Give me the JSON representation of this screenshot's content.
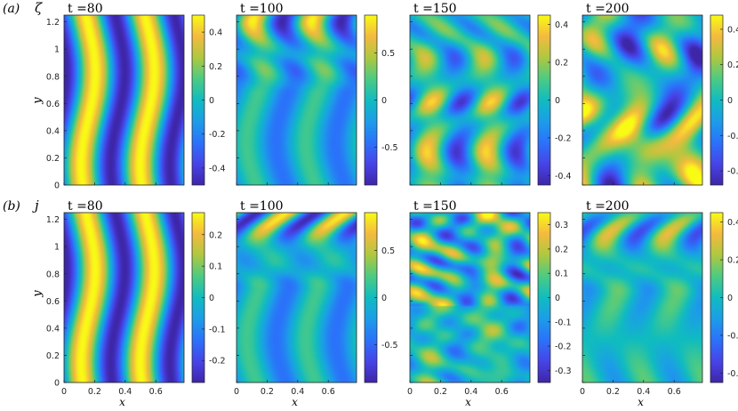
{
  "rows": [
    {
      "row_label": "(a)",
      "field_symbol": "ζ",
      "panels": [
        {
          "time_label": "t =80",
          "pattern": "stripes",
          "colorbar_ticks": [
            "0.4",
            "0.2",
            "0",
            "-0.2",
            "-0.4"
          ],
          "clim": [
            -0.5,
            0.5
          ]
        },
        {
          "time_label": "t =100",
          "pattern": "kh",
          "colorbar_ticks": [
            "0.5",
            "0",
            "-0.5"
          ],
          "clim": [
            -0.9,
            0.9
          ]
        },
        {
          "time_label": "t =150",
          "pattern": "blobs",
          "colorbar_ticks": [
            "0.4",
            "0.2",
            "0",
            "-0.2",
            "-0.4"
          ],
          "clim": [
            -0.45,
            0.45
          ]
        },
        {
          "time_label": "t =200",
          "pattern": "turb",
          "colorbar_ticks": [
            "0.4",
            "0.2",
            "0",
            "-0.2",
            "-0.4"
          ],
          "clim": [
            -0.48,
            0.48
          ]
        }
      ]
    },
    {
      "row_label": "(b)",
      "field_symbol": "j",
      "panels": [
        {
          "time_label": "t =80",
          "pattern": "stripes",
          "colorbar_ticks": [
            "0.2",
            "0.1",
            "0",
            "-0.1",
            "-0.2"
          ],
          "clim": [
            -0.27,
            0.27
          ]
        },
        {
          "time_label": "t =100",
          "pattern": "kh",
          "colorbar_ticks": [
            "0.5",
            "0",
            "-0.5"
          ],
          "clim": [
            -0.9,
            0.9
          ]
        },
        {
          "time_label": "t =150",
          "pattern": "filaments",
          "colorbar_ticks": [
            "0.3",
            "0.2",
            "0.1",
            "0",
            "-0.1",
            "-0.2",
            "-0.3"
          ],
          "clim": [
            -0.35,
            0.35
          ]
        },
        {
          "time_label": "t =200",
          "pattern": "turb2",
          "colorbar_ticks": [
            "0.4",
            "0.2",
            "0",
            "-0.2",
            "-0.4"
          ],
          "clim": [
            -0.45,
            0.45
          ]
        }
      ]
    }
  ],
  "x_ticks": [
    "0",
    "0.2",
    "0.4",
    "0.6"
  ],
  "x_tick_values": [
    0,
    0.2,
    0.4,
    0.6
  ],
  "x_range": [
    0,
    0.785
  ],
  "y_ticks": [
    "0",
    "0.2",
    "0.4",
    "0.6",
    "0.8",
    "1",
    "1.2"
  ],
  "y_tick_values": [
    0,
    0.2,
    0.4,
    0.6,
    0.8,
    1.0,
    1.2
  ],
  "y_range": [
    0,
    1.25
  ],
  "x_label": "x",
  "y_label": "y",
  "colormap": "parula"
}
